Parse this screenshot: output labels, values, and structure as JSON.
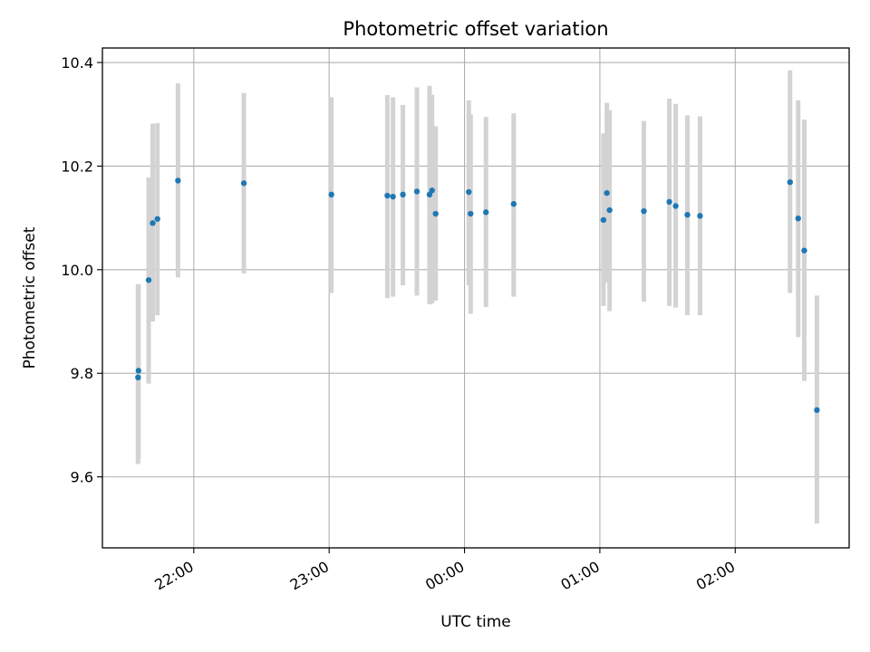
{
  "chart_data": {
    "type": "scatter",
    "title": "Photometric offset variation",
    "xlabel": "UTC time",
    "ylabel": "Photometric offset",
    "x_tick_labels": [
      "22:00",
      "23:00",
      "00:00",
      "01:00",
      "02:00"
    ],
    "x_tick_minutes": [
      1320,
      1380,
      1440,
      1500,
      1560
    ],
    "y_tick_labels": [
      "9.6",
      "9.8",
      "10.0",
      "10.2",
      "10.4"
    ],
    "y_ticks": [
      9.6,
      9.8,
      10.0,
      10.2,
      10.4
    ],
    "x_range_minutes": [
      1279.5,
      1610.5
    ],
    "ylim": [
      9.463,
      10.428
    ],
    "grid": true,
    "marker_color": "#1f77b4",
    "errorbar_color": "#d3d3d3",
    "points": [
      {
        "t": 1295.3,
        "y": 9.792,
        "lo": 9.625,
        "hi": 9.972
      },
      {
        "t": 1295.5,
        "y": 9.805,
        "lo": 9.635,
        "hi": 9.972
      },
      {
        "t": 1300.0,
        "y": 9.98,
        "lo": 9.78,
        "hi": 10.178
      },
      {
        "t": 1301.8,
        "y": 10.09,
        "lo": 9.9,
        "hi": 10.282
      },
      {
        "t": 1303.9,
        "y": 10.098,
        "lo": 9.912,
        "hi": 10.283
      },
      {
        "t": 1313.0,
        "y": 10.172,
        "lo": 9.985,
        "hi": 10.36
      },
      {
        "t": 1342.2,
        "y": 10.167,
        "lo": 9.993,
        "hi": 10.341
      },
      {
        "t": 1381.0,
        "y": 10.145,
        "lo": 9.955,
        "hi": 10.333
      },
      {
        "t": 1405.8,
        "y": 10.143,
        "lo": 9.945,
        "hi": 10.337
      },
      {
        "t": 1408.3,
        "y": 10.141,
        "lo": 9.948,
        "hi": 10.333
      },
      {
        "t": 1412.7,
        "y": 10.145,
        "lo": 9.97,
        "hi": 10.318
      },
      {
        "t": 1418.9,
        "y": 10.151,
        "lo": 9.95,
        "hi": 10.352
      },
      {
        "t": 1424.5,
        "y": 10.145,
        "lo": 9.933,
        "hi": 10.355
      },
      {
        "t": 1425.6,
        "y": 10.153,
        "lo": 9.935,
        "hi": 10.338
      },
      {
        "t": 1427.2,
        "y": 10.108,
        "lo": 9.94,
        "hi": 10.277
      },
      {
        "t": 1441.9,
        "y": 10.15,
        "lo": 9.97,
        "hi": 10.327
      },
      {
        "t": 1442.7,
        "y": 10.108,
        "lo": 9.915,
        "hi": 10.3
      },
      {
        "t": 1449.5,
        "y": 10.111,
        "lo": 9.928,
        "hi": 10.295
      },
      {
        "t": 1461.8,
        "y": 10.127,
        "lo": 9.948,
        "hi": 10.302
      },
      {
        "t": 1501.6,
        "y": 10.096,
        "lo": 9.93,
        "hi": 10.263
      },
      {
        "t": 1503.1,
        "y": 10.148,
        "lo": 9.975,
        "hi": 10.322
      },
      {
        "t": 1504.3,
        "y": 10.115,
        "lo": 9.92,
        "hi": 10.308
      },
      {
        "t": 1519.5,
        "y": 10.113,
        "lo": 9.938,
        "hi": 10.287
      },
      {
        "t": 1530.8,
        "y": 10.131,
        "lo": 9.93,
        "hi": 10.33
      },
      {
        "t": 1533.6,
        "y": 10.123,
        "lo": 9.927,
        "hi": 10.32
      },
      {
        "t": 1538.8,
        "y": 10.106,
        "lo": 9.912,
        "hi": 10.298
      },
      {
        "t": 1544.4,
        "y": 10.104,
        "lo": 9.912,
        "hi": 10.296
      },
      {
        "t": 1584.3,
        "y": 10.169,
        "lo": 9.955,
        "hi": 10.385
      },
      {
        "t": 1587.9,
        "y": 10.099,
        "lo": 9.87,
        "hi": 10.327
      },
      {
        "t": 1590.6,
        "y": 10.037,
        "lo": 9.785,
        "hi": 10.29
      },
      {
        "t": 1596.2,
        "y": 9.729,
        "lo": 9.51,
        "hi": 9.95
      }
    ]
  }
}
